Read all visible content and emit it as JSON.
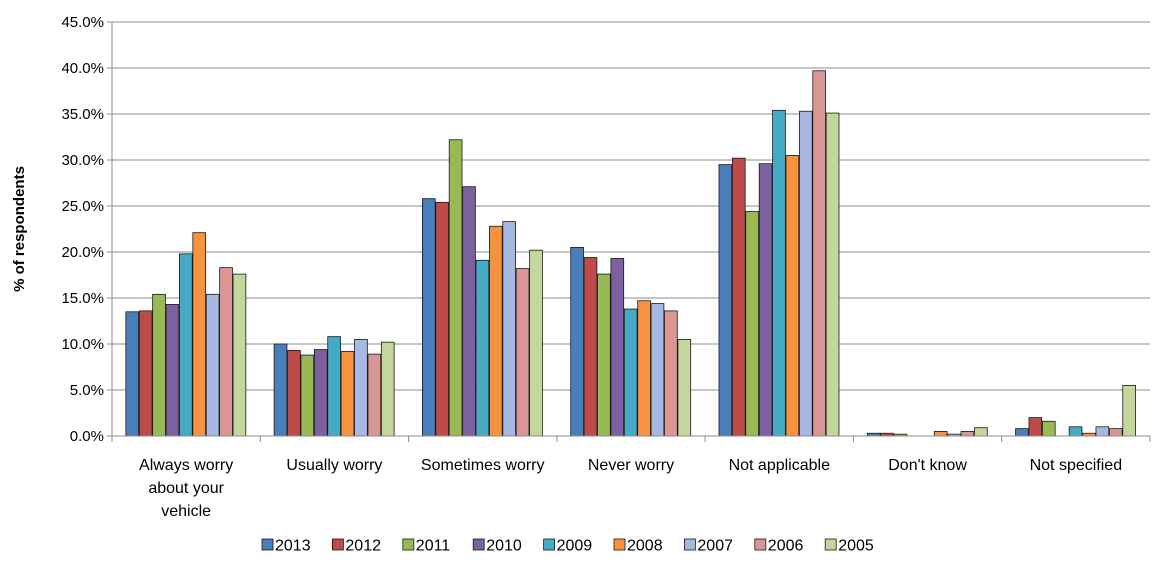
{
  "chart_data": {
    "type": "bar",
    "title": "",
    "xlabel": "",
    "ylabel": "% of respondents",
    "ylim": [
      0,
      45
    ],
    "y_ticks": [
      "0.0%",
      "5.0%",
      "10.0%",
      "15.0%",
      "20.0%",
      "25.0%",
      "30.0%",
      "35.0%",
      "40.0%",
      "45.0%"
    ],
    "grid": true,
    "legend_position": "bottom",
    "categories": [
      [
        "Always worry",
        "about your",
        "vehicle"
      ],
      [
        "Usually worry"
      ],
      [
        "Sometimes worry"
      ],
      [
        "Never worry"
      ],
      [
        "Not applicable"
      ],
      [
        "Don't know"
      ],
      [
        "Not specified"
      ]
    ],
    "series": [
      {
        "name": "2013",
        "color": "#4A7EBB",
        "values": [
          13.5,
          10.0,
          25.8,
          20.5,
          29.5,
          0.3,
          0.8
        ]
      },
      {
        "name": "2012",
        "color": "#BE4B48",
        "values": [
          13.6,
          9.3,
          25.4,
          19.4,
          30.2,
          0.3,
          2.0
        ]
      },
      {
        "name": "2011",
        "color": "#98B954",
        "values": [
          15.4,
          8.8,
          32.2,
          17.6,
          24.4,
          0.2,
          1.6
        ]
      },
      {
        "name": "2010",
        "color": "#7D60A0",
        "values": [
          14.3,
          9.4,
          27.1,
          19.3,
          29.6,
          0.0,
          0.0
        ]
      },
      {
        "name": "2009",
        "color": "#46AAC5",
        "values": [
          19.8,
          10.8,
          19.1,
          13.8,
          35.4,
          0.0,
          1.0
        ]
      },
      {
        "name": "2008",
        "color": "#F69240",
        "values": [
          22.1,
          9.2,
          22.8,
          14.7,
          30.5,
          0.5,
          0.3
        ]
      },
      {
        "name": "2007",
        "color": "#A7B9E3",
        "values": [
          15.4,
          10.5,
          23.3,
          14.4,
          35.3,
          0.2,
          1.0
        ]
      },
      {
        "name": "2006",
        "color": "#DA9694",
        "values": [
          18.3,
          8.9,
          18.2,
          13.6,
          39.7,
          0.5,
          0.8
        ]
      },
      {
        "name": "2005",
        "color": "#C3D69B",
        "values": [
          17.6,
          10.2,
          20.2,
          10.5,
          35.1,
          0.9,
          5.5
        ]
      }
    ]
  }
}
